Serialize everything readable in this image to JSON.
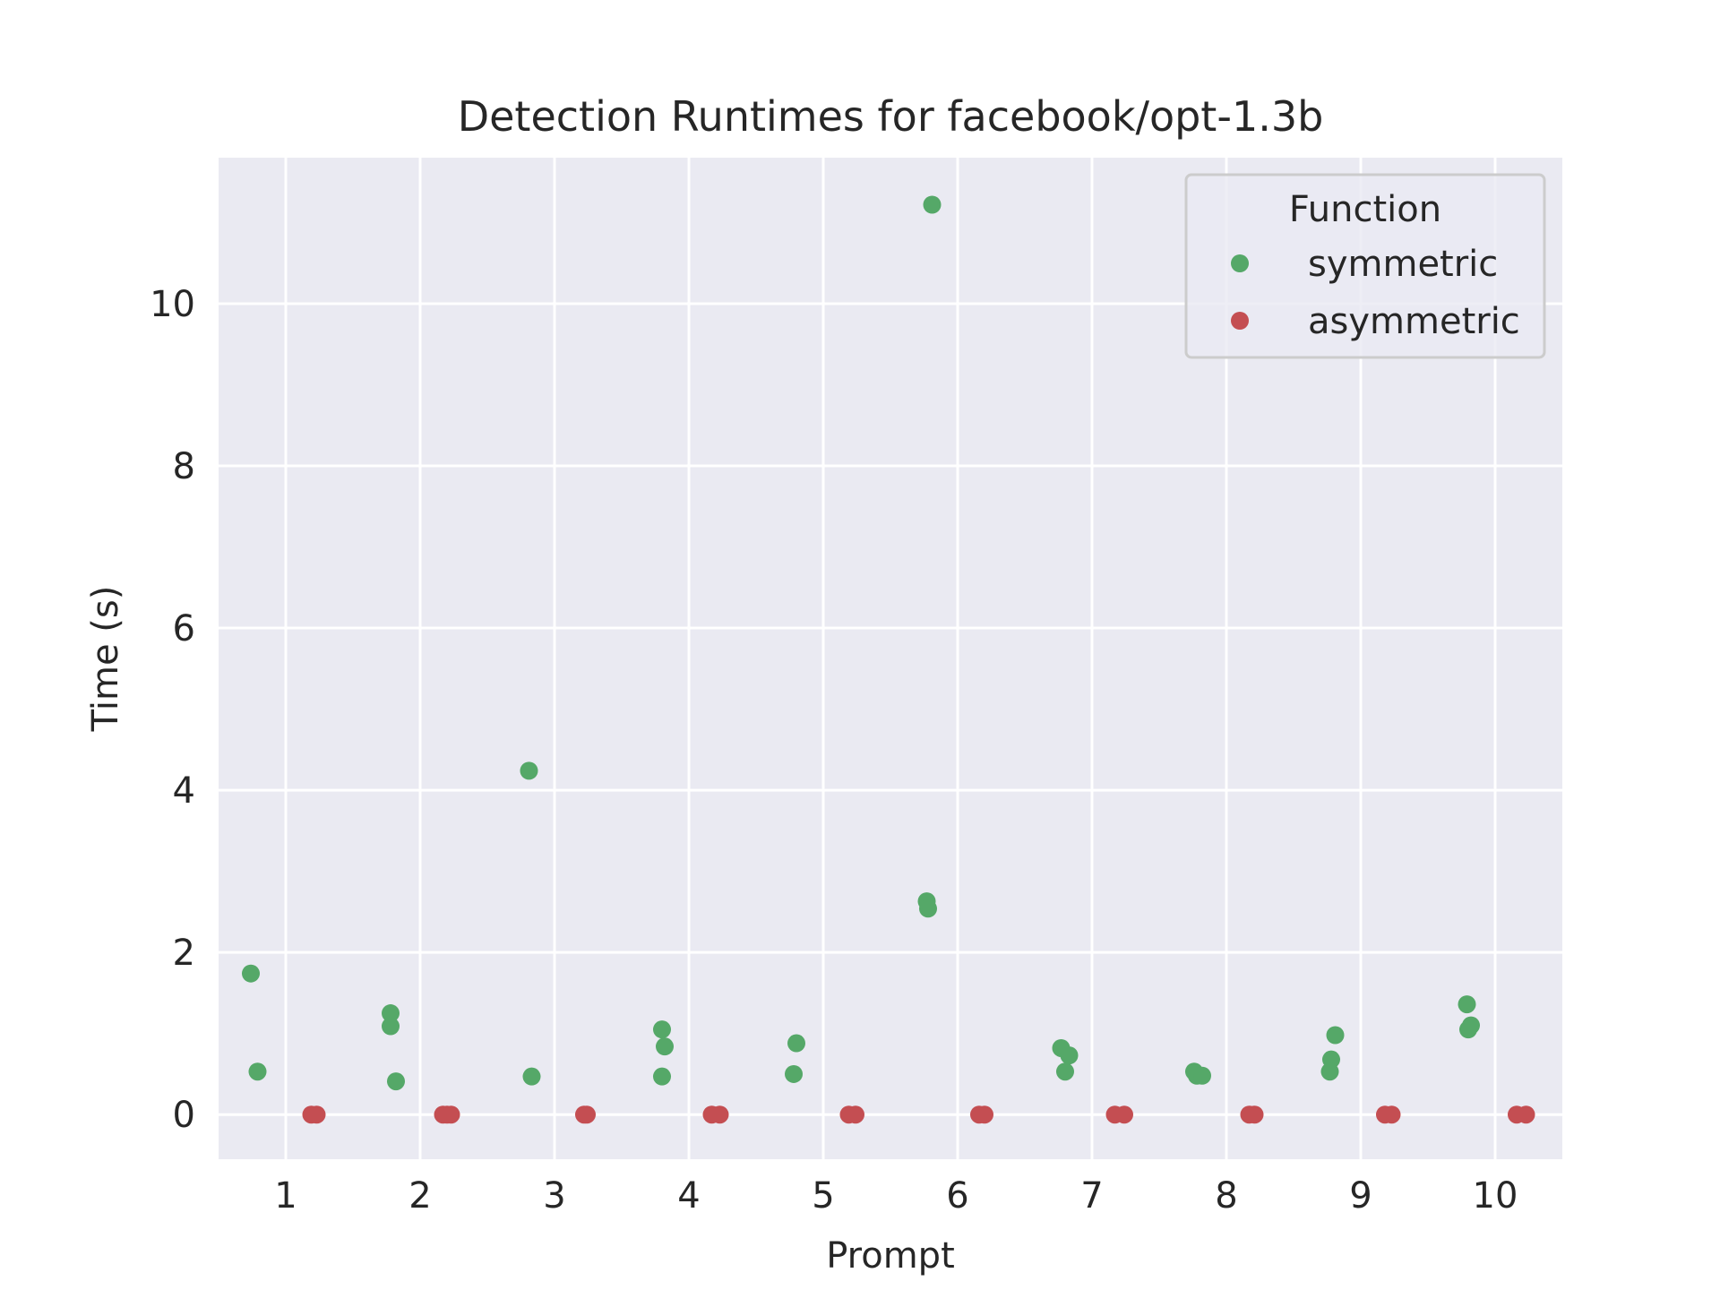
{
  "chart_data": {
    "type": "scatter",
    "title": "Detection Runtimes for facebook/opt-1.3b",
    "xlabel": "Prompt",
    "ylabel": "Time (s)",
    "xlim": [
      0.5,
      10.5
    ],
    "ylim": [
      -0.55,
      11.8
    ],
    "xticks": [
      1,
      2,
      3,
      4,
      5,
      6,
      7,
      8,
      9,
      10
    ],
    "yticks": [
      0,
      2,
      4,
      6,
      8,
      10
    ],
    "grid": true,
    "legend": {
      "title": "Function",
      "placement": "top-right"
    },
    "series": [
      {
        "name": "symmetric",
        "color": "#55a868",
        "points": [
          {
            "x": 0.74,
            "y": 1.74
          },
          {
            "x": 0.79,
            "y": 0.53
          },
          {
            "x": 1.78,
            "y": 1.25
          },
          {
            "x": 1.78,
            "y": 1.09
          },
          {
            "x": 1.82,
            "y": 0.41
          },
          {
            "x": 2.81,
            "y": 4.24
          },
          {
            "x": 2.83,
            "y": 0.47
          },
          {
            "x": 3.8,
            "y": 1.05
          },
          {
            "x": 3.82,
            "y": 0.84
          },
          {
            "x": 3.8,
            "y": 0.47
          },
          {
            "x": 4.8,
            "y": 0.88
          },
          {
            "x": 4.78,
            "y": 0.5
          },
          {
            "x": 5.81,
            "y": 11.22
          },
          {
            "x": 5.77,
            "y": 2.63
          },
          {
            "x": 5.78,
            "y": 2.54
          },
          {
            "x": 6.77,
            "y": 0.82
          },
          {
            "x": 6.83,
            "y": 0.73
          },
          {
            "x": 6.8,
            "y": 0.53
          },
          {
            "x": 7.76,
            "y": 0.53
          },
          {
            "x": 7.78,
            "y": 0.48
          },
          {
            "x": 7.82,
            "y": 0.48
          },
          {
            "x": 8.81,
            "y": 0.98
          },
          {
            "x": 8.78,
            "y": 0.68
          },
          {
            "x": 8.77,
            "y": 0.53
          },
          {
            "x": 9.79,
            "y": 1.36
          },
          {
            "x": 9.82,
            "y": 1.1
          },
          {
            "x": 9.8,
            "y": 1.05
          }
        ]
      },
      {
        "name": "asymmetric",
        "color": "#c44e52",
        "points": [
          {
            "x": 1.19,
            "y": 0.0
          },
          {
            "x": 1.23,
            "y": 0.0
          },
          {
            "x": 2.17,
            "y": 0.0
          },
          {
            "x": 2.2,
            "y": 0.0
          },
          {
            "x": 2.23,
            "y": 0.0
          },
          {
            "x": 3.22,
            "y": 0.0
          },
          {
            "x": 3.24,
            "y": 0.0
          },
          {
            "x": 4.17,
            "y": 0.0
          },
          {
            "x": 4.23,
            "y": 0.0
          },
          {
            "x": 5.19,
            "y": 0.0
          },
          {
            "x": 5.24,
            "y": 0.0
          },
          {
            "x": 6.16,
            "y": 0.0
          },
          {
            "x": 6.2,
            "y": 0.0
          },
          {
            "x": 7.17,
            "y": 0.0
          },
          {
            "x": 7.24,
            "y": 0.0
          },
          {
            "x": 8.17,
            "y": 0.0
          },
          {
            "x": 8.21,
            "y": 0.0
          },
          {
            "x": 9.18,
            "y": 0.0
          },
          {
            "x": 9.23,
            "y": 0.0
          },
          {
            "x": 10.16,
            "y": 0.0
          },
          {
            "x": 10.23,
            "y": 0.0
          }
        ]
      }
    ]
  }
}
